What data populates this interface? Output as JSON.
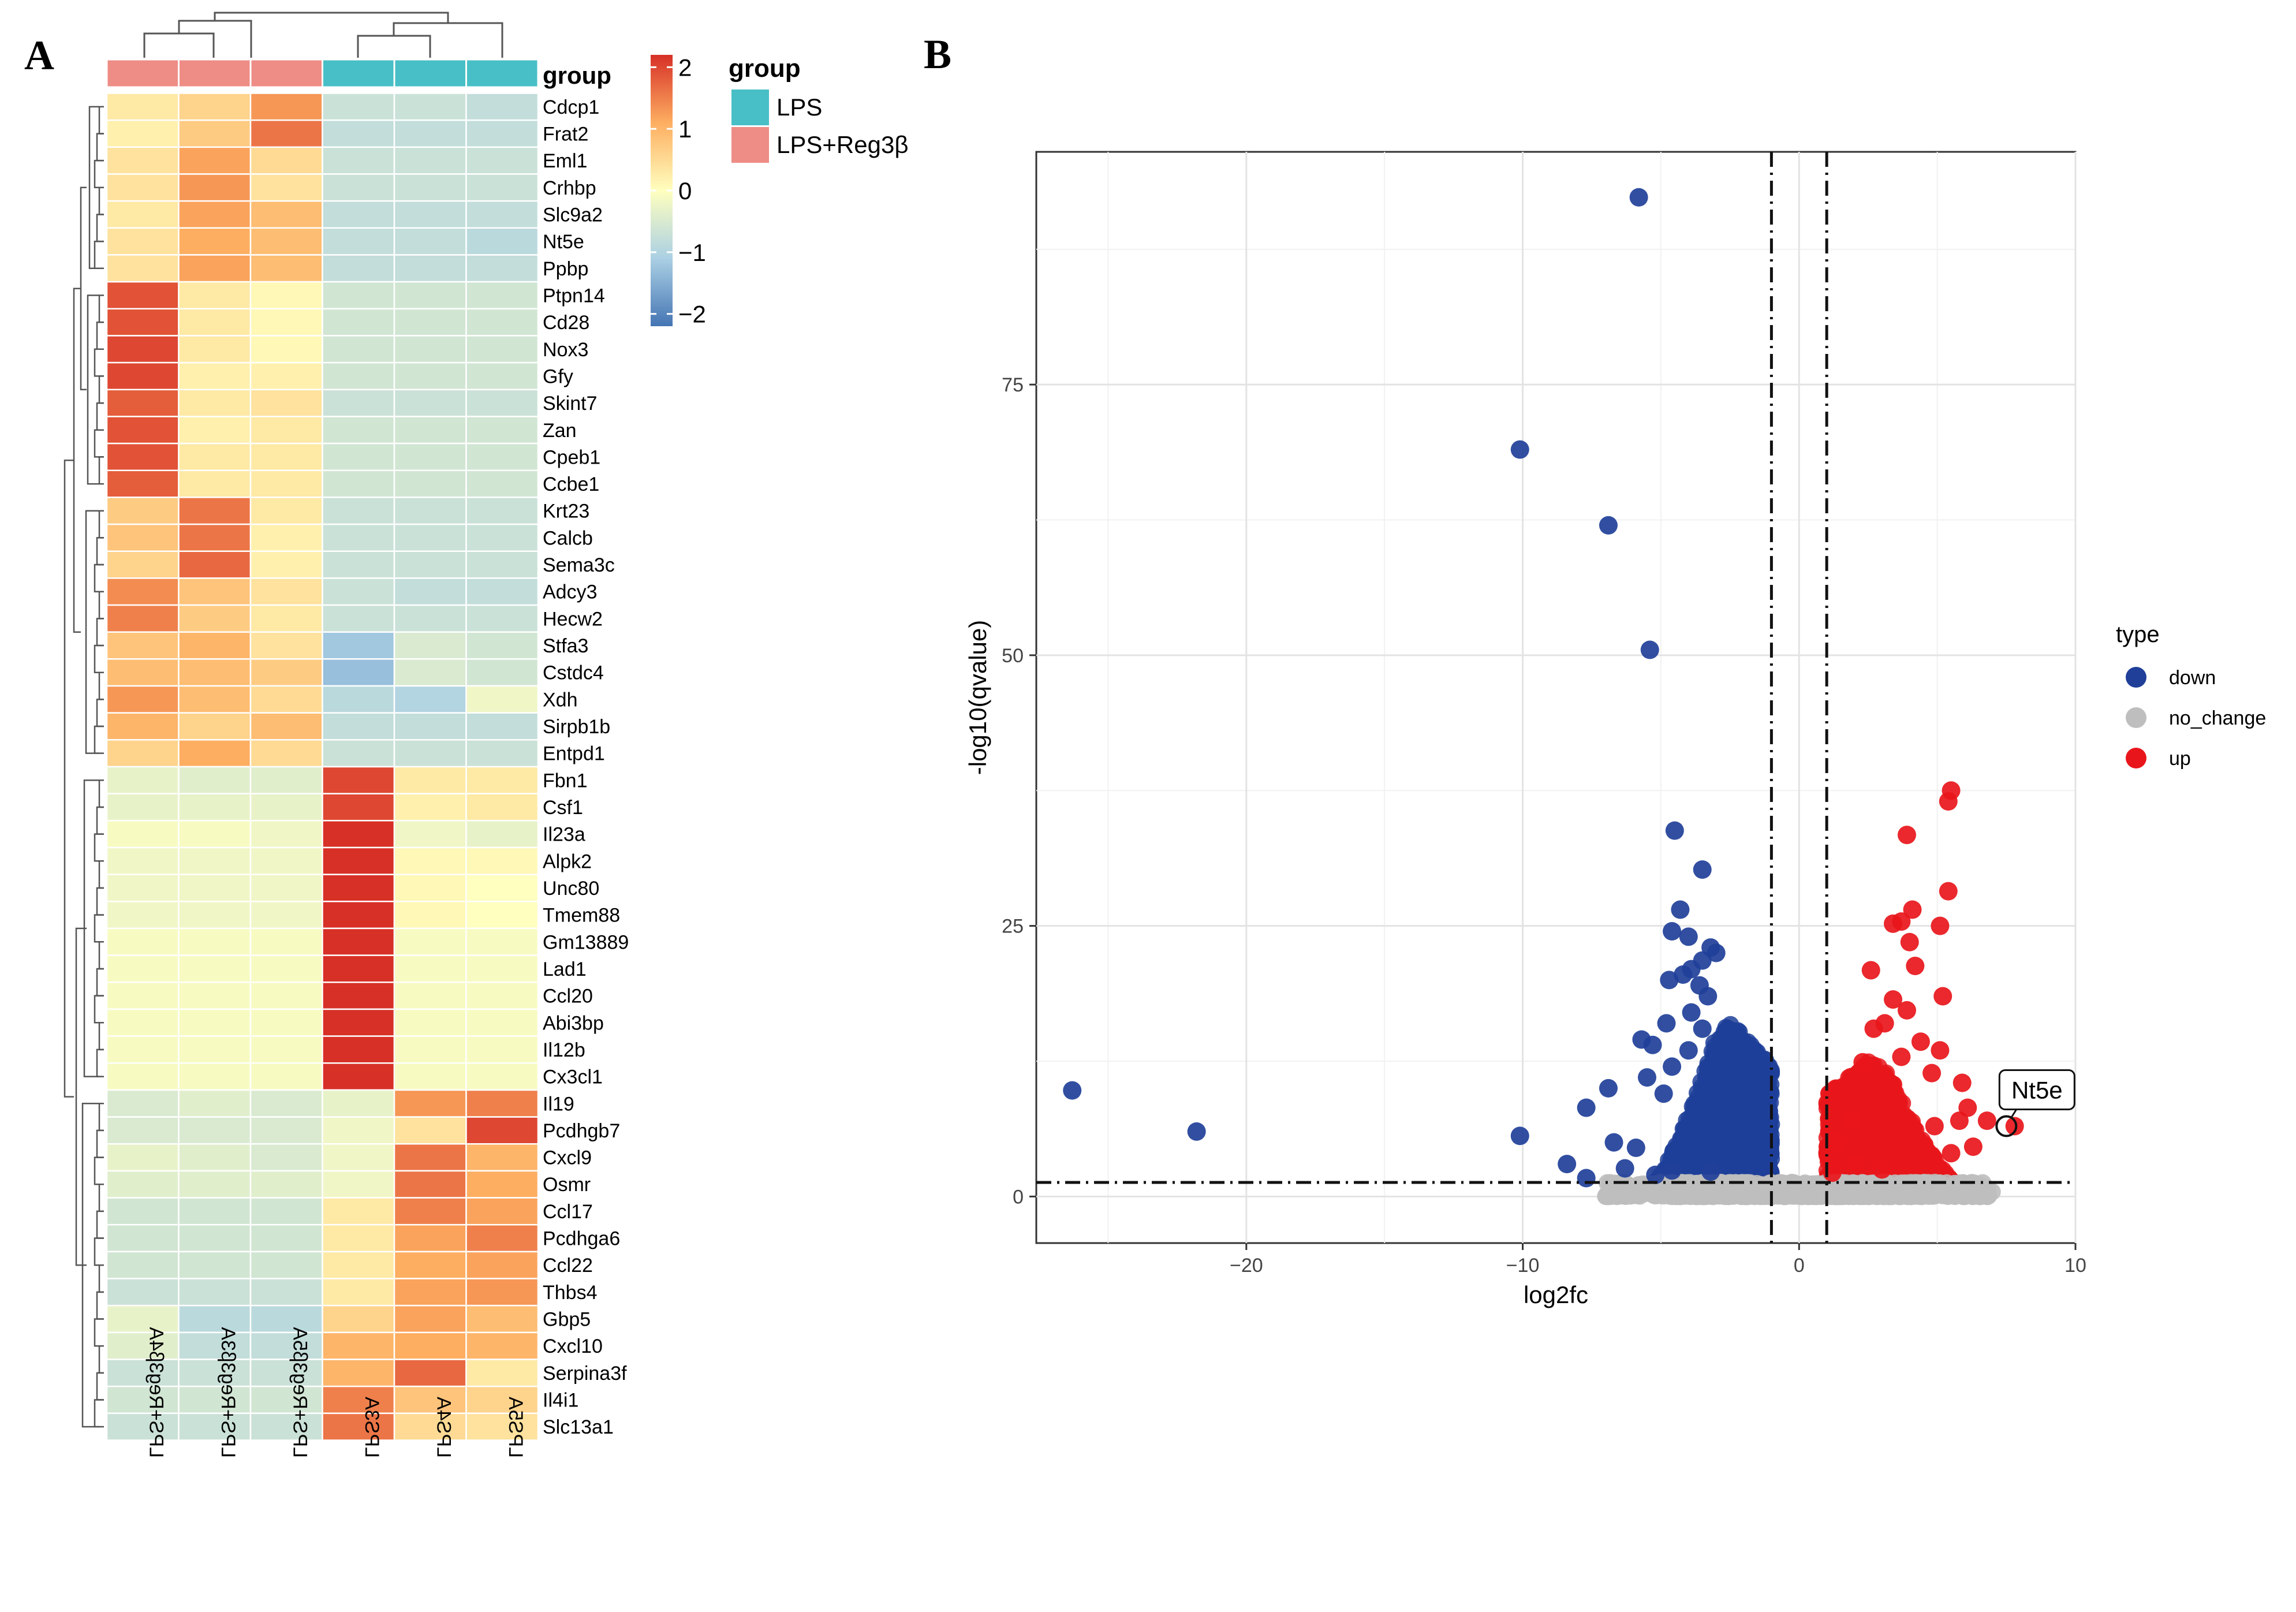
{
  "panel_labels": [
    "A",
    "B"
  ],
  "chart_data": [
    {
      "type": "heatmap",
      "panel": "A",
      "samples": [
        "LPS+Reg3β4A",
        "LPS+Reg3β3A",
        "LPS+Reg3β5A",
        "LPS3A",
        "LPS4A",
        "LPS5A"
      ],
      "sample_groups": [
        "LPS+Reg3β",
        "LPS+Reg3β",
        "LPS+Reg3β",
        "LPS",
        "LPS",
        "LPS"
      ],
      "annotation_title": "group",
      "legend": {
        "title": "group",
        "entries": [
          {
            "label": "LPS",
            "color": "#48BFC6"
          },
          {
            "label": "LPS+Reg3β",
            "color": "#EE8C86"
          }
        ]
      },
      "color_scale": {
        "ticks": [
          "2",
          "1",
          "0",
          "−1",
          "−2"
        ],
        "tick_values": [
          2,
          1,
          0,
          -1,
          -2
        ],
        "range": [
          -2.2,
          2.2
        ],
        "colors": [
          "#4575B4",
          "#ABD0E4",
          "#FFFFBF",
          "#FDAE61",
          "#D73027"
        ]
      },
      "genes": [
        "Cdcp1",
        "Frat2",
        "Eml1",
        "Crhbp",
        "Slc9a2",
        "Nt5e",
        "Ppbp",
        "Ptpn14",
        "Cd28",
        "Nox3",
        "Gfy",
        "Skint7",
        "Zan",
        "Cpeb1",
        "Ccbe1",
        "Krt23",
        "Calcb",
        "Sema3c",
        "Adcy3",
        "Hecw2",
        "Stfa3",
        "Cstdc4",
        "Xdh",
        "Sirpb1b",
        "Entpd1",
        "Fbn1",
        "Csf1",
        "Il23a",
        "Alpk2",
        "Unc80",
        "Tmem88",
        "Gm13889",
        "Lad1",
        "Ccl20",
        "Abi3bp",
        "Il12b",
        "Cx3cl1",
        "Il19",
        "Pcdhgb7",
        "Cxcl9",
        "Osmr",
        "Ccl17",
        "Pcdhga6",
        "Ccl22",
        "Thbs4",
        "Gbp5",
        "Cxcl10",
        "Serpina3f",
        "Il4i1",
        "Slc13a1"
      ],
      "values": [
        [
          0.3,
          0.6,
          1.3,
          -0.7,
          -0.7,
          -0.8
        ],
        [
          0.2,
          0.7,
          1.6,
          -0.8,
          -0.8,
          -0.8
        ],
        [
          0.4,
          1.2,
          0.5,
          -0.7,
          -0.7,
          -0.7
        ],
        [
          0.4,
          1.3,
          0.4,
          -0.7,
          -0.7,
          -0.7
        ],
        [
          0.3,
          1.2,
          0.9,
          -0.8,
          -0.8,
          -0.8
        ],
        [
          0.4,
          1.1,
          0.9,
          -0.8,
          -0.8,
          -0.9
        ],
        [
          0.4,
          1.2,
          0.9,
          -0.8,
          -0.8,
          -0.8
        ],
        [
          1.9,
          0.3,
          0.1,
          -0.6,
          -0.6,
          -0.6
        ],
        [
          1.9,
          0.3,
          0.1,
          -0.6,
          -0.6,
          -0.6
        ],
        [
          2.0,
          0.3,
          0.1,
          -0.6,
          -0.6,
          -0.6
        ],
        [
          2.0,
          0.2,
          0.2,
          -0.6,
          -0.6,
          -0.6
        ],
        [
          1.8,
          0.3,
          0.4,
          -0.7,
          -0.7,
          -0.7
        ],
        [
          1.9,
          0.2,
          0.3,
          -0.6,
          -0.6,
          -0.6
        ],
        [
          1.9,
          0.3,
          0.3,
          -0.6,
          -0.6,
          -0.6
        ],
        [
          1.8,
          0.3,
          0.3,
          -0.6,
          -0.6,
          -0.6
        ],
        [
          0.7,
          1.6,
          0.3,
          -0.7,
          -0.7,
          -0.7
        ],
        [
          0.8,
          1.6,
          0.2,
          -0.7,
          -0.7,
          -0.7
        ],
        [
          0.6,
          1.7,
          0.2,
          -0.7,
          -0.7,
          -0.7
        ],
        [
          1.4,
          0.8,
          0.4,
          -0.7,
          -0.8,
          -0.8
        ],
        [
          1.5,
          0.7,
          0.3,
          -0.7,
          -0.7,
          -0.7
        ],
        [
          0.8,
          1.0,
          0.4,
          -1.2,
          -0.5,
          -0.6
        ],
        [
          0.9,
          0.9,
          0.7,
          -1.3,
          -0.5,
          -0.6
        ],
        [
          1.3,
          0.9,
          0.5,
          -0.9,
          -1.0,
          -0.2
        ],
        [
          1.0,
          0.6,
          0.9,
          -0.8,
          -0.8,
          -0.8
        ],
        [
          0.6,
          1.1,
          0.5,
          -0.7,
          -0.7,
          -0.7
        ],
        [
          -0.3,
          -0.4,
          -0.4,
          2.0,
          0.3,
          0.3
        ],
        [
          -0.3,
          -0.3,
          -0.3,
          2.0,
          0.2,
          0.3
        ],
        [
          -0.1,
          -0.1,
          -0.2,
          2.2,
          -0.2,
          -0.3
        ],
        [
          -0.2,
          -0.2,
          -0.2,
          2.2,
          0.1,
          0.1
        ],
        [
          -0.2,
          -0.2,
          -0.2,
          2.2,
          0.1,
          0.0
        ],
        [
          -0.2,
          -0.2,
          -0.2,
          2.2,
          0.1,
          0.0
        ],
        [
          -0.1,
          -0.1,
          -0.1,
          2.2,
          -0.1,
          -0.1
        ],
        [
          -0.1,
          -0.1,
          -0.1,
          2.2,
          -0.1,
          -0.1
        ],
        [
          -0.1,
          -0.1,
          -0.1,
          2.2,
          -0.1,
          -0.1
        ],
        [
          -0.1,
          -0.1,
          -0.1,
          2.2,
          -0.1,
          -0.1
        ],
        [
          -0.1,
          -0.1,
          -0.1,
          2.2,
          -0.1,
          -0.1
        ],
        [
          -0.1,
          -0.1,
          -0.1,
          2.2,
          -0.1,
          -0.1
        ],
        [
          -0.5,
          -0.4,
          -0.5,
          -0.3,
          1.3,
          1.5
        ],
        [
          -0.5,
          -0.5,
          -0.5,
          -0.2,
          0.4,
          2.0
        ],
        [
          -0.3,
          -0.4,
          -0.5,
          -0.2,
          1.6,
          1.0
        ],
        [
          -0.4,
          -0.4,
          -0.4,
          -0.2,
          1.6,
          1.1
        ],
        [
          -0.6,
          -0.6,
          -0.6,
          0.3,
          1.5,
          1.2
        ],
        [
          -0.6,
          -0.6,
          -0.6,
          0.3,
          1.2,
          1.5
        ],
        [
          -0.6,
          -0.6,
          -0.6,
          0.3,
          1.1,
          1.2
        ],
        [
          -0.7,
          -0.7,
          -0.7,
          0.3,
          1.2,
          1.3
        ],
        [
          -0.3,
          -0.9,
          -0.9,
          0.6,
          1.2,
          0.9
        ],
        [
          -0.4,
          -0.8,
          -0.8,
          1.0,
          1.1,
          1.0
        ],
        [
          -0.7,
          -0.7,
          -0.7,
          1.0,
          1.7,
          0.3
        ],
        [
          -0.6,
          -0.6,
          -0.6,
          1.5,
          0.8,
          0.6
        ],
        [
          -0.7,
          -0.7,
          -0.7,
          1.6,
          0.5,
          0.4
        ]
      ]
    },
    {
      "type": "scatter",
      "panel": "B",
      "title": "",
      "xlabel": "log2fc",
      "ylabel": "-log10(qvalue)",
      "xlim": [
        -27.6,
        10
      ],
      "ylim": [
        -4.3,
        96.5
      ],
      "x_ticks": [
        -20,
        -10,
        0,
        10
      ],
      "x_tick_labels": [
        "−20",
        "−10",
        "0",
        "10"
      ],
      "y_ticks": [
        0,
        25,
        50,
        75
      ],
      "y_tick_labels": [
        "0",
        "25",
        "50",
        "75"
      ],
      "thresholds": {
        "log2fc": [
          -1,
          1
        ],
        "neg_log10_q": 1.3
      },
      "legend": {
        "title": "type",
        "position": "right",
        "entries": [
          {
            "label": "down",
            "color": "#1F3F99"
          },
          {
            "label": "no_change",
            "color": "#BEBEBE"
          },
          {
            "label": "up",
            "color": "#E8161B"
          }
        ]
      },
      "annotation": {
        "label": "Nt5e",
        "x": 7.5,
        "y": 6.5
      },
      "series": [
        {
          "name": "down",
          "color": "#1F3F99",
          "points": [
            [
              -5.8,
              92.3
            ],
            [
              -10.1,
              69
            ],
            [
              -6.9,
              62
            ],
            [
              -5.4,
              50.5
            ],
            [
              -4.5,
              33.8
            ],
            [
              -3.5,
              30.2
            ],
            [
              -4.3,
              26.5
            ],
            [
              -4.6,
              24.5
            ],
            [
              -4,
              24
            ],
            [
              -3.2,
              23
            ],
            [
              -3,
              22.5
            ],
            [
              -3.5,
              21.8
            ],
            [
              -4.7,
              20
            ],
            [
              -4.2,
              20.5
            ],
            [
              -3.9,
              21
            ],
            [
              -3.6,
              19.5
            ],
            [
              -3.3,
              18.5
            ],
            [
              -4.8,
              16
            ],
            [
              -3.9,
              17
            ],
            [
              -5.7,
              14.5
            ],
            [
              -5.3,
              14
            ],
            [
              -3.5,
              15.5
            ],
            [
              -4,
              13.5
            ],
            [
              -4.6,
              12
            ],
            [
              -5.5,
              11
            ],
            [
              -4.9,
              9.5
            ],
            [
              -6.9,
              10
            ],
            [
              -7.7,
              8.2
            ],
            [
              -26.3,
              9.8
            ],
            [
              -21.8,
              6
            ],
            [
              -10.1,
              5.6
            ],
            [
              -6.7,
              5
            ],
            [
              -5.9,
              4.5
            ],
            [
              -8.4,
              3
            ],
            [
              -6.3,
              2.6
            ],
            [
              -7.7,
              1.7
            ],
            [
              -5.2,
              2
            ],
            [
              -4.6,
              2.4
            ],
            [
              -3.2,
              2.3
            ]
          ]
        },
        {
          "name": "up",
          "color": "#E8161B",
          "points": [
            [
              5.5,
              37.5
            ],
            [
              5.4,
              36.5
            ],
            [
              3.9,
              33.4
            ],
            [
              5.4,
              28.2
            ],
            [
              4.1,
              26.5
            ],
            [
              3.7,
              25.4
            ],
            [
              3.4,
              25.2
            ],
            [
              5.1,
              25
            ],
            [
              4,
              23.5
            ],
            [
              4.2,
              21.3
            ],
            [
              2.6,
              20.9
            ],
            [
              3.4,
              18.2
            ],
            [
              5.2,
              18.5
            ],
            [
              3.1,
              16
            ],
            [
              3.9,
              17.2
            ],
            [
              2.7,
              15.5
            ],
            [
              4.4,
              14.3
            ],
            [
              2.3,
              12.4
            ],
            [
              3.7,
              12.9
            ],
            [
              5.1,
              13.5
            ],
            [
              4.8,
              11.4
            ],
            [
              5.9,
              10.5
            ],
            [
              6.1,
              8.2
            ],
            [
              5.8,
              7
            ],
            [
              4.9,
              6.5
            ],
            [
              6.8,
              7
            ],
            [
              7.8,
              6.5
            ],
            [
              1.9,
              7
            ],
            [
              1.4,
              5
            ],
            [
              1.2,
              2.2
            ],
            [
              2.1,
              3
            ],
            [
              3,
              2.5
            ],
            [
              5.5,
              4
            ],
            [
              6.3,
              4.6
            ]
          ]
        }
      ],
      "dense_clusters": [
        {
          "name": "down",
          "color": "#1F3F99",
          "x_range": [
            -5.2,
            -1
          ],
          "y_range": [
            1.3,
            18
          ],
          "n": 1400
        },
        {
          "name": "up",
          "color": "#E8161B",
          "x_range": [
            1,
            5.6
          ],
          "y_range": [
            1.3,
            14
          ],
          "n": 1300
        },
        {
          "name": "no_change",
          "color": "#BEBEBE",
          "x_range": [
            -7,
            7
          ],
          "y_range": [
            0,
            1.3
          ],
          "n": 1700
        }
      ]
    }
  ]
}
